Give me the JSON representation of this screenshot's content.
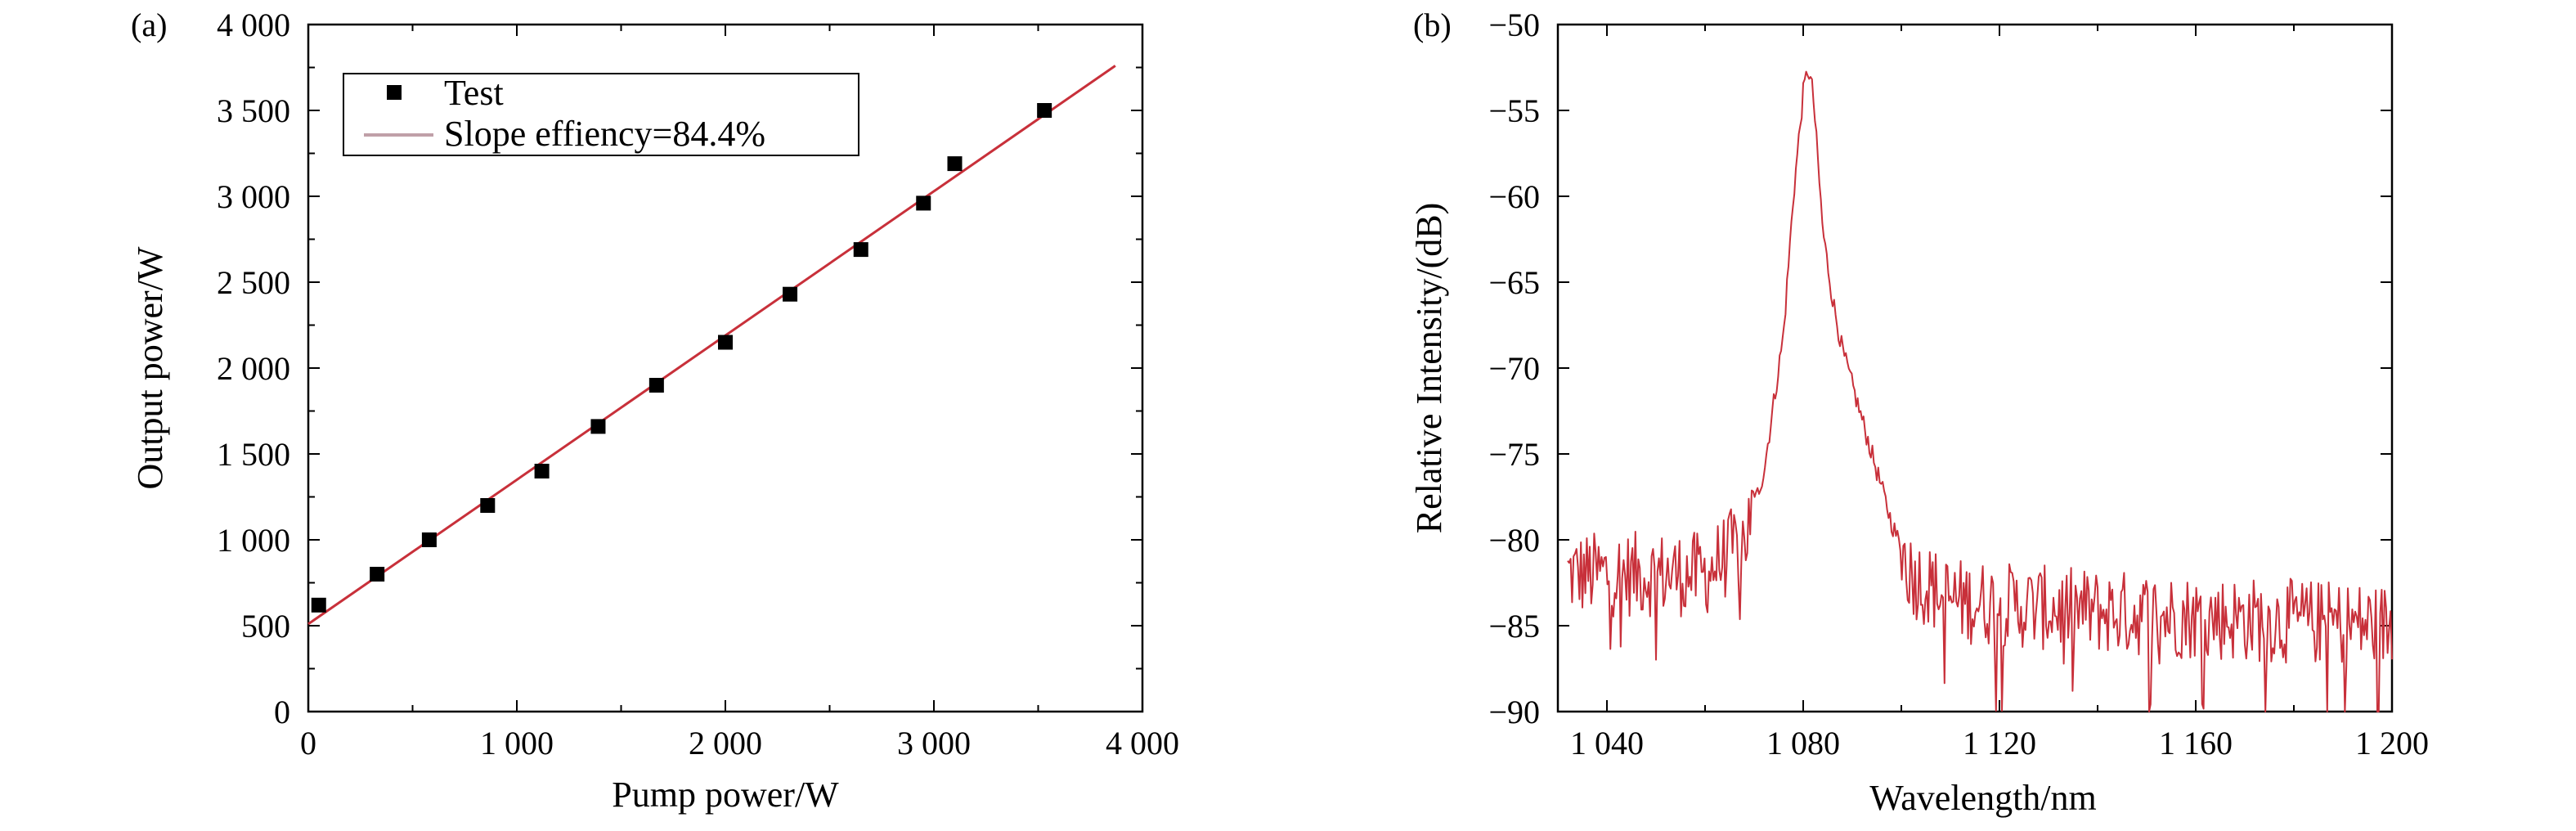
{
  "chart_data": [
    {
      "panel_label": "(a)",
      "type": "scatter",
      "xlabel": "Pump power/W",
      "ylabel": "Output power/W",
      "xlim": [
        0,
        4000
      ],
      "ylim": [
        0,
        4000
      ],
      "xticks": [
        0,
        1000,
        2000,
        3000,
        4000
      ],
      "xtick_labels": [
        "0",
        "1 000",
        "2 000",
        "3 000",
        "4 000"
      ],
      "yticks": [
        0,
        500,
        1000,
        1500,
        2000,
        2500,
        3000,
        3500,
        4000
      ],
      "ytick_labels": [
        "0",
        "500",
        "1 000",
        "1 500",
        "2 000",
        "2 500",
        "3 000",
        "3 500",
        "4 000"
      ],
      "legend_position": "top-left",
      "series": [
        {
          "name": "Test",
          "marker": "square",
          "color": "#000000",
          "x": [
            50,
            330,
            580,
            860,
            1120,
            1390,
            1670,
            2000,
            2310,
            2650,
            2950,
            3100,
            3530
          ],
          "y": [
            620,
            800,
            1000,
            1200,
            1400,
            1660,
            1900,
            2150,
            2430,
            2690,
            2960,
            3190,
            3500
          ]
        },
        {
          "name": "Slope effiency=84.4%",
          "type": "line",
          "color": "#c8303a",
          "x": [
            0,
            3870
          ],
          "y": [
            510,
            3760
          ]
        }
      ]
    },
    {
      "panel_label": "(b)",
      "type": "line",
      "xlabel": "Wavelength/nm",
      "ylabel": "Relative Intensity/(dB)",
      "xlim": [
        1030,
        1200
      ],
      "ylim": [
        -90,
        -50
      ],
      "xticks": [
        1040,
        1080,
        1120,
        1160,
        1200
      ],
      "xtick_labels": [
        "1 040",
        "1 080",
        "1 120",
        "1 160",
        "1 200"
      ],
      "yticks": [
        -90,
        -85,
        -80,
        -75,
        -70,
        -65,
        -60,
        -55,
        -50
      ],
      "ytick_labels": [
        "−90",
        "−85",
        "−80",
        "−75",
        "−70",
        "−65",
        "−60",
        "−55",
        "−50"
      ],
      "series": [
        {
          "color": "#c8303a",
          "envelope_x": [
            1032,
            1060,
            1068,
            1072,
            1076,
            1078,
            1080,
            1081,
            1082,
            1084,
            1086,
            1088,
            1090,
            1094,
            1098,
            1102,
            1110,
            1130,
            1160,
            1200
          ],
          "envelope_y": [
            -82,
            -82,
            -80,
            -76,
            -68,
            -60,
            -54,
            -52.5,
            -54,
            -62,
            -66,
            -69,
            -71,
            -75,
            -79,
            -82,
            -83.5,
            -84,
            -84.5,
            -85
          ],
          "noise_amplitude_dB": 2.5,
          "step_nm": 0.3
        }
      ]
    }
  ]
}
